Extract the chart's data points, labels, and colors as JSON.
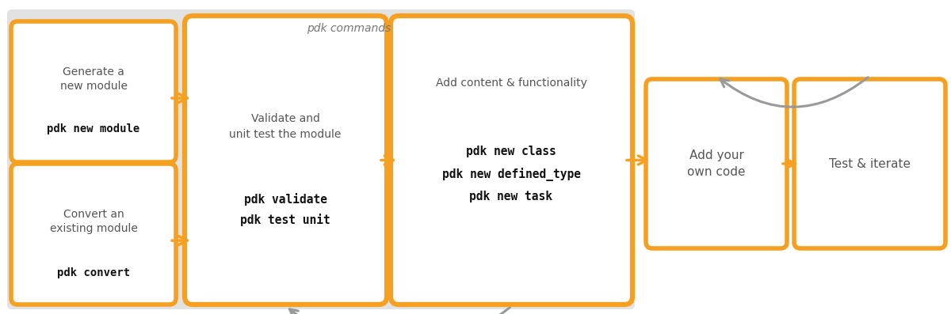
{
  "bg_color": "#ffffff",
  "gray_box_color": "#e2e2e2",
  "orange_color": "#f5a020",
  "gray_arrow_color": "#999999",
  "title_pdk": "pdk commands",
  "box1_top_text": "Generate a\nnew module",
  "box1_bot_text": "pdk new module",
  "box2_top_text": "Convert an\nexisting module",
  "box2_bot_text": "pdk convert",
  "box3_top_text": "Validate and\nunit test the module",
  "box3_bot_text": "pdk validate\npdk test unit",
  "box4_top_text": "Add content & functionality",
  "box4_bot_text": "pdk new class\npdk new defined_type\npdk new task",
  "box5_text": "Add your\nown code",
  "box6_text": "Test & iterate",
  "gray_text_color": "#555555",
  "black_text_color": "#111111"
}
